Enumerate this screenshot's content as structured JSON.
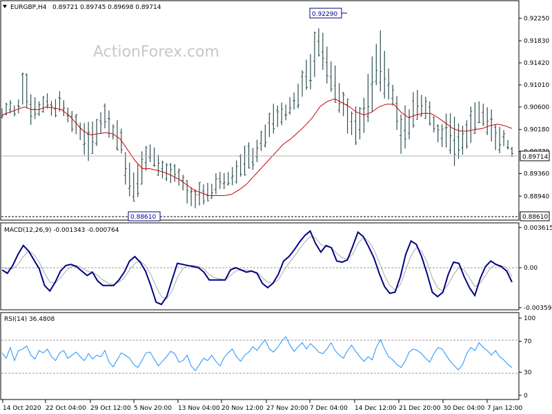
{
  "chart_data": [
    {
      "type": "candlestick",
      "panel": "price",
      "symbol_label": "EURGBP,H4",
      "ohlc_label": "0.89721 0.89745 0.89698 0.89714",
      "watermark": "ActionForex.com",
      "y_ticks": [
        "0.92250",
        "0.91830",
        "0.91420",
        "0.91010",
        "0.90600",
        "0.90180",
        "0.89770",
        "0.89360",
        "0.88940"
      ],
      "ylim": [
        0.8852,
        0.9255
      ],
      "current_price": 0.89714,
      "current_price_label": "0.89714",
      "high": 0.9229,
      "high_label": "0.92290",
      "low": 0.8861,
      "low_label": "0.88610",
      "low_line_label": "0.88610",
      "x_ticks": [
        "14 Oct 2020",
        "22 Oct 04:00",
        "29 Oct 12:00",
        "5 Nov 20:00",
        "13 Nov 04:00",
        "20 Nov 12:00",
        "27 Nov 20:00",
        "7 Dec 04:00",
        "14 Dec 12:00",
        "21 Dec 20:00",
        "30 Dec 04:00",
        "7 Jan 12:00"
      ],
      "price_path": [
        [
          0.906,
          0.9035
        ],
        [
          0.908,
          0.9045
        ],
        [
          0.906,
          0.904
        ],
        [
          0.9145,
          0.907
        ],
        [
          0.9085,
          0.901
        ],
        [
          0.9075,
          0.904
        ],
        [
          0.909,
          0.905
        ],
        [
          0.907,
          0.9035
        ],
        [
          0.9095,
          0.905
        ],
        [
          0.906,
          0.902
        ],
        [
          0.905,
          0.9
        ],
        [
          0.904,
          0.8975
        ],
        [
          0.9035,
          0.894
        ],
        [
          0.905,
          0.899
        ],
        [
          0.907,
          0.901
        ],
        [
          0.9035,
          0.899
        ],
        [
          0.904,
          0.897
        ],
        [
          0.896,
          0.889
        ],
        [
          0.895,
          0.888
        ],
        [
          0.899,
          0.891
        ],
        [
          0.9,
          0.895
        ],
        [
          0.8975,
          0.893
        ],
        [
          0.896,
          0.892
        ],
        [
          0.8965,
          0.891
        ],
        [
          0.895,
          0.8905
        ],
        [
          0.893,
          0.888
        ],
        [
          0.891,
          0.8865
        ],
        [
          0.8925,
          0.8875
        ],
        [
          0.892,
          0.888
        ],
        [
          0.894,
          0.889
        ],
        [
          0.8945,
          0.8905
        ],
        [
          0.895,
          0.891
        ],
        [
          0.897,
          0.892
        ],
        [
          0.9,
          0.893
        ],
        [
          0.899,
          0.894
        ],
        [
          0.903,
          0.896
        ],
        [
          0.9045,
          0.899
        ],
        [
          0.908,
          0.901
        ],
        [
          0.907,
          0.902
        ],
        [
          0.9085,
          0.904
        ],
        [
          0.911,
          0.905
        ],
        [
          0.915,
          0.907
        ],
        [
          0.919,
          0.909
        ],
        [
          0.9229,
          0.915
        ],
        [
          0.9175,
          0.909
        ],
        [
          0.914,
          0.906
        ],
        [
          0.91,
          0.904
        ],
        [
          0.907,
          0.9
        ],
        [
          0.906,
          0.898
        ],
        [
          0.909,
          0.901
        ],
        [
          0.915,
          0.904
        ],
        [
          0.9218,
          0.909
        ],
        [
          0.915,
          0.906
        ],
        [
          0.911,
          0.905
        ],
        [
          0.906,
          0.896
        ],
        [
          0.907,
          0.898
        ],
        [
          0.91,
          0.903
        ],
        [
          0.909,
          0.904
        ],
        [
          0.9075,
          0.901
        ],
        [
          0.903,
          0.899
        ],
        [
          0.905,
          0.897
        ],
        [
          0.906,
          0.895
        ],
        [
          0.902,
          0.894
        ],
        [
          0.905,
          0.898
        ],
        [
          0.908,
          0.901
        ],
        [
          0.907,
          0.902
        ],
        [
          0.906,
          0.899
        ],
        [
          0.904,
          0.897
        ],
        [
          0.902,
          0.898
        ],
        [
          0.899,
          0.8965
        ]
      ],
      "ma_path": [
        0.9045,
        0.905,
        0.9055,
        0.906,
        0.9055,
        0.9055,
        0.906,
        0.9058,
        0.9055,
        0.9045,
        0.903,
        0.9015,
        0.9008,
        0.901,
        0.9012,
        0.901,
        0.9,
        0.898,
        0.896,
        0.8945,
        0.8945,
        0.8942,
        0.8938,
        0.8932,
        0.8925,
        0.8915,
        0.8905,
        0.89,
        0.8895,
        0.8895,
        0.8895,
        0.8897,
        0.8905,
        0.8915,
        0.893,
        0.8945,
        0.896,
        0.8975,
        0.899,
        0.9,
        0.9012,
        0.9025,
        0.904,
        0.906,
        0.907,
        0.9075,
        0.9068,
        0.906,
        0.905,
        0.9045,
        0.905,
        0.906,
        0.9065,
        0.9065,
        0.905,
        0.904,
        0.9045,
        0.9048,
        0.9048,
        0.904,
        0.903,
        0.902,
        0.9015,
        0.9015,
        0.9018,
        0.902,
        0.9025,
        0.9028,
        0.9025,
        0.902
      ],
      "colors": {
        "bars": "#2f4f4f",
        "ma": "#cc0000",
        "labels_box": "#000080"
      }
    },
    {
      "type": "line",
      "panel": "macd",
      "label": "MACD(12,26,9) -0.001343 -0.000764",
      "y_ticks": [
        "0.003615",
        "0.00",
        "-0.003592"
      ],
      "ylim": [
        -0.0036,
        0.0036
      ],
      "series": [
        {
          "role": "macd",
          "color": "#000080",
          "values": [
            -0.0002,
            -0.0005,
            0.0002,
            0.0012,
            0.002,
            0.0015,
            0.0007,
            -0.0001,
            -0.0016,
            -0.0021,
            -0.0013,
            -0.0003,
            0.0002,
            0.0003,
            0.0001,
            -0.0003,
            -0.0007,
            -0.0004,
            -0.0012,
            -0.0016,
            -0.0016,
            -0.0016,
            -0.0011,
            -0.0004,
            0.0006,
            0.001,
            0.0005,
            -0.0003,
            -0.0016,
            -0.0031,
            -0.0033,
            -0.0026,
            -0.0011,
            0.0004,
            0.0003,
            0.0002,
            0.0001,
            0.0,
            -0.0004,
            -0.0011,
            -0.0011,
            -0.0011,
            -0.0011,
            -0.0002,
            0.0,
            -0.0002,
            -0.0004,
            -0.0003,
            -0.0005,
            -0.0014,
            -0.0018,
            -0.0014,
            -0.0006,
            0.0006,
            0.001,
            0.0016,
            0.0023,
            0.0029,
            0.0033,
            0.0022,
            0.0014,
            0.002,
            0.0018,
            0.0006,
            0.0005,
            0.0007,
            0.0019,
            0.0032,
            0.0028,
            0.0019,
            0.0009,
            -0.0005,
            -0.0017,
            -0.0023,
            -0.0022,
            -0.0008,
            0.0012,
            0.0024,
            0.0021,
            0.001,
            -0.0005,
            -0.0022,
            -0.0026,
            -0.0022,
            -0.0006,
            0.0005,
            0.0004,
            -0.0008,
            -0.0018,
            -0.0025,
            -0.001,
            0.0001,
            0.0006,
            0.0003,
            0.0001,
            -0.0003,
            -0.0013
          ]
        },
        {
          "role": "signal",
          "color": "#a8a8a8",
          "values": [
            0.0,
            -0.0001,
            -0.0001,
            0.0003,
            0.001,
            0.0015,
            0.0012,
            0.0005,
            -0.0005,
            -0.0013,
            -0.0014,
            -0.0009,
            -0.0003,
            0.0001,
            0.0002,
            0.0,
            -0.0003,
            -0.0004,
            -0.0007,
            -0.0011,
            -0.0014,
            -0.0015,
            -0.0013,
            -0.0009,
            -0.0002,
            0.0004,
            0.0006,
            0.0002,
            -0.0006,
            -0.0017,
            -0.0026,
            -0.0028,
            -0.0021,
            -0.0009,
            -0.0001,
            0.0002,
            0.0002,
            0.0001,
            -0.0001,
            -0.0006,
            -0.0009,
            -0.001,
            -0.0011,
            -0.0007,
            -0.0003,
            -0.0002,
            -0.0002,
            -0.0003,
            -0.0004,
            -0.0009,
            -0.0013,
            -0.0014,
            -0.0011,
            -0.0003,
            0.0004,
            0.001,
            0.0017,
            0.0023,
            0.0028,
            0.0027,
            0.0021,
            0.0019,
            0.0018,
            0.0013,
            0.0009,
            0.0008,
            0.0012,
            0.0022,
            0.0027,
            0.0024,
            0.0016,
            0.0005,
            -0.0007,
            -0.0016,
            -0.002,
            -0.0015,
            -0.0002,
            0.0011,
            0.0018,
            0.0015,
            0.0005,
            -0.0009,
            -0.0018,
            -0.0021,
            -0.0015,
            -0.0006,
            0.0,
            -0.0002,
            -0.0009,
            -0.0017,
            -0.0014,
            -0.0007,
            0.0,
            0.0003,
            0.0002,
            0.0,
            -0.0008
          ]
        }
      ]
    },
    {
      "type": "line",
      "panel": "rsi",
      "label": "RSI(14) 36.4808",
      "y_ticks": [
        "100",
        "70",
        "30",
        "0"
      ],
      "ylim": [
        0,
        100
      ],
      "reference_lines": [
        70,
        30
      ],
      "series": [
        {
          "role": "rsi",
          "color": "#1e90ff",
          "values": [
            55,
            48,
            62,
            45,
            58,
            60,
            64,
            52,
            47,
            58,
            55,
            60,
            50,
            45,
            55,
            58,
            48,
            52,
            56,
            50,
            45,
            54,
            47,
            52,
            50,
            58,
            43,
            37,
            46,
            55,
            52,
            48,
            40,
            36,
            45,
            55,
            56,
            47,
            38,
            44,
            50,
            57,
            54,
            43,
            45,
            52,
            38,
            32,
            40,
            48,
            45,
            52,
            44,
            38,
            49,
            55,
            60,
            50,
            44,
            52,
            56,
            63,
            58,
            66,
            72,
            60,
            56,
            62,
            70,
            76,
            65,
            57,
            63,
            68,
            60,
            67,
            62,
            56,
            54,
            60,
            68,
            58,
            52,
            48,
            58,
            65,
            57,
            50,
            44,
            50,
            46,
            62,
            72,
            60,
            50,
            46,
            40,
            36,
            44,
            56,
            60,
            58,
            54,
            48,
            43,
            54,
            62,
            60,
            52,
            44,
            38,
            33,
            40,
            54,
            62,
            58,
            68,
            62,
            58,
            52,
            58,
            50,
            46,
            40,
            36
          ]
        }
      ]
    }
  ]
}
